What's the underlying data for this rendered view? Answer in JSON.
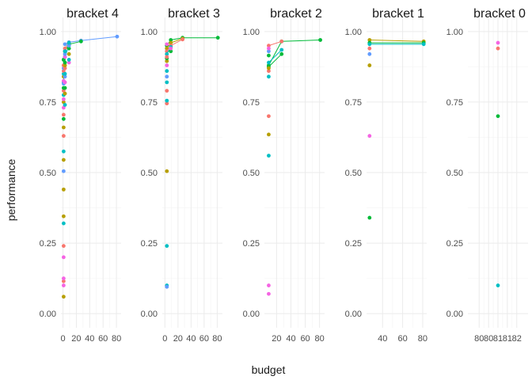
{
  "chart_data": {
    "type": "scatter",
    "xlabel": "budget",
    "ylabel": "performance",
    "ylim": [
      -0.05,
      1.05
    ],
    "y_ticks": [
      0.0,
      0.25,
      0.5,
      0.75,
      1.0
    ],
    "y_tick_labels": [
      "0.00",
      "0.25",
      "0.50",
      "0.75",
      "1.00"
    ],
    "grid": true,
    "legend": "none",
    "palette": [
      "#F8766D",
      "#B79F00",
      "#00BA38",
      "#00BFC4",
      "#619CFF",
      "#F564E3"
    ],
    "facets": [
      {
        "title": "bracket 4",
        "xlim": [
          -3,
          87
        ],
        "x_ticks": [
          0,
          20,
          40,
          60,
          80
        ],
        "x_tick_labels": [
          "0",
          "20",
          "40",
          "60",
          "80"
        ],
        "lines": [
          {
            "color": "#619CFF",
            "points": [
              [
                3,
                0.955
              ],
              [
                9,
                0.962
              ],
              [
                27,
                0.968
              ],
              [
                81,
                0.982
              ]
            ]
          },
          {
            "color": "#00BA38",
            "points": [
              [
                1,
                0.9
              ],
              [
                3,
                0.93
              ],
              [
                9,
                0.955
              ],
              [
                27,
                0.965
              ]
            ]
          },
          {
            "color": "#F8766D",
            "points": [
              [
                1,
                0.88
              ],
              [
                3,
                0.94
              ],
              [
                9,
                0.96
              ]
            ]
          },
          {
            "color": "#00BFC4",
            "points": [
              [
                1,
                0.82
              ],
              [
                3,
                0.91
              ],
              [
                9,
                0.95
              ]
            ]
          }
        ],
        "points": [
          {
            "x": 1,
            "y": 0.06,
            "color": "#B79F00"
          },
          {
            "x": 1,
            "y": 0.1,
            "color": "#F564E3"
          },
          {
            "x": 1,
            "y": 0.115,
            "color": "#F8766D"
          },
          {
            "x": 1,
            "y": 0.125,
            "color": "#F564E3"
          },
          {
            "x": 1,
            "y": 0.2,
            "color": "#F564E3"
          },
          {
            "x": 1,
            "y": 0.24,
            "color": "#F8766D"
          },
          {
            "x": 1,
            "y": 0.32,
            "color": "#00BFC4"
          },
          {
            "x": 1,
            "y": 0.345,
            "color": "#B79F00"
          },
          {
            "x": 1,
            "y": 0.44,
            "color": "#B79F00"
          },
          {
            "x": 1,
            "y": 0.505,
            "color": "#619CFF"
          },
          {
            "x": 1,
            "y": 0.545,
            "color": "#B79F00"
          },
          {
            "x": 1,
            "y": 0.575,
            "color": "#00BFC4"
          },
          {
            "x": 1,
            "y": 0.63,
            "color": "#F8766D"
          },
          {
            "x": 1,
            "y": 0.66,
            "color": "#B79F00"
          },
          {
            "x": 1,
            "y": 0.69,
            "color": "#00BA38"
          },
          {
            "x": 1,
            "y": 0.705,
            "color": "#F8766D"
          },
          {
            "x": 1,
            "y": 0.73,
            "color": "#F564E3"
          },
          {
            "x": 1,
            "y": 0.75,
            "color": "#B79F00"
          },
          {
            "x": 1,
            "y": 0.76,
            "color": "#F564E3"
          },
          {
            "x": 1,
            "y": 0.775,
            "color": "#00BFC4"
          },
          {
            "x": 1,
            "y": 0.79,
            "color": "#F8766D"
          },
          {
            "x": 1,
            "y": 0.8,
            "color": "#00BA38"
          },
          {
            "x": 1,
            "y": 0.815,
            "color": "#619CFF"
          },
          {
            "x": 1,
            "y": 0.825,
            "color": "#F564E3"
          },
          {
            "x": 1,
            "y": 0.84,
            "color": "#B79F00"
          },
          {
            "x": 1,
            "y": 0.85,
            "color": "#00BFC4"
          },
          {
            "x": 1,
            "y": 0.86,
            "color": "#F8766D"
          },
          {
            "x": 1,
            "y": 0.87,
            "color": "#619CFF"
          },
          {
            "x": 1,
            "y": 0.88,
            "color": "#F8766D"
          },
          {
            "x": 1,
            "y": 0.9,
            "color": "#00BA38"
          },
          {
            "x": 3,
            "y": 0.74,
            "color": "#00BFC4"
          },
          {
            "x": 3,
            "y": 0.78,
            "color": "#B79F00"
          },
          {
            "x": 3,
            "y": 0.8,
            "color": "#00BA38"
          },
          {
            "x": 3,
            "y": 0.82,
            "color": "#F564E3"
          },
          {
            "x": 3,
            "y": 0.84,
            "color": "#619CFF"
          },
          {
            "x": 3,
            "y": 0.85,
            "color": "#00BFC4"
          },
          {
            "x": 3,
            "y": 0.87,
            "color": "#F8766D"
          },
          {
            "x": 3,
            "y": 0.88,
            "color": "#B79F00"
          },
          {
            "x": 3,
            "y": 0.89,
            "color": "#00BA38"
          },
          {
            "x": 3,
            "y": 0.91,
            "color": "#F564E3"
          },
          {
            "x": 3,
            "y": 0.92,
            "color": "#619CFF"
          },
          {
            "x": 3,
            "y": 0.93,
            "color": "#00BFC4"
          },
          {
            "x": 9,
            "y": 0.89,
            "color": "#F564E3"
          },
          {
            "x": 9,
            "y": 0.9,
            "color": "#00BFC4"
          },
          {
            "x": 9,
            "y": 0.92,
            "color": "#B79F00"
          },
          {
            "x": 9,
            "y": 0.94,
            "color": "#00BA38"
          },
          {
            "x": 9,
            "y": 0.95,
            "color": "#619CFF"
          },
          {
            "x": 9,
            "y": 0.96,
            "color": "#00BFC4"
          }
        ]
      },
      {
        "title": "bracket 3",
        "xlim": [
          -4,
          88
        ],
        "x_ticks": [
          0,
          20,
          40,
          60,
          80
        ],
        "x_tick_labels": [
          "0",
          "20",
          "40",
          "60",
          "80"
        ],
        "lines": [
          {
            "color": "#00BA38",
            "points": [
              [
                3,
                0.95
              ],
              [
                9,
                0.97
              ],
              [
                27,
                0.978
              ],
              [
                81,
                0.978
              ]
            ]
          },
          {
            "color": "#B79F00",
            "points": [
              [
                3,
                0.94
              ],
              [
                9,
                0.96
              ],
              [
                27,
                0.975
              ]
            ]
          },
          {
            "color": "#F8766D",
            "points": [
              [
                3,
                0.93
              ],
              [
                9,
                0.95
              ],
              [
                27,
                0.972
              ]
            ]
          },
          {
            "color": "#00BFC4",
            "points": [
              [
                3,
                0.92
              ],
              [
                9,
                0.945
              ]
            ]
          }
        ],
        "points": [
          {
            "x": 3,
            "y": 0.1,
            "color": "#00BFC4"
          },
          {
            "x": 3,
            "y": 0.095,
            "color": "#619CFF"
          },
          {
            "x": 3,
            "y": 0.24,
            "color": "#00BFC4"
          },
          {
            "x": 3,
            "y": 0.505,
            "color": "#B79F00"
          },
          {
            "x": 3,
            "y": 0.745,
            "color": "#F8766D"
          },
          {
            "x": 3,
            "y": 0.755,
            "color": "#00BFC4"
          },
          {
            "x": 3,
            "y": 0.79,
            "color": "#F8766D"
          },
          {
            "x": 3,
            "y": 0.82,
            "color": "#00BFC4"
          },
          {
            "x": 3,
            "y": 0.84,
            "color": "#619CFF"
          },
          {
            "x": 3,
            "y": 0.86,
            "color": "#00BFC4"
          },
          {
            "x": 3,
            "y": 0.88,
            "color": "#F564E3"
          },
          {
            "x": 3,
            "y": 0.895,
            "color": "#B79F00"
          },
          {
            "x": 3,
            "y": 0.905,
            "color": "#00BA38"
          },
          {
            "x": 3,
            "y": 0.91,
            "color": "#F8766D"
          },
          {
            "x": 3,
            "y": 0.955,
            "color": "#F564E3"
          },
          {
            "x": 9,
            "y": 0.93,
            "color": "#00BA38"
          },
          {
            "x": 9,
            "y": 0.94,
            "color": "#F564E3"
          }
        ]
      },
      {
        "title": "bracket 2",
        "xlim": [
          3,
          87
        ],
        "x_ticks": [
          20,
          40,
          60,
          80
        ],
        "x_tick_labels": [
          "20",
          "40",
          "60",
          "80"
        ],
        "lines": [
          {
            "color": "#00BA38",
            "points": [
              [
                9,
                0.88
              ],
              [
                27,
                0.965
              ],
              [
                81,
                0.97
              ]
            ]
          },
          {
            "color": "#F8766D",
            "points": [
              [
                9,
                0.95
              ],
              [
                27,
                0.965
              ]
            ]
          },
          {
            "color": "#00BFC4",
            "points": [
              [
                9,
                0.89
              ],
              [
                27,
                0.935
              ]
            ]
          },
          {
            "color": "#00BA38",
            "points": [
              [
                9,
                0.875
              ],
              [
                27,
                0.92
              ]
            ]
          }
        ],
        "points": [
          {
            "x": 9,
            "y": 0.07,
            "color": "#F564E3"
          },
          {
            "x": 9,
            "y": 0.1,
            "color": "#F564E3"
          },
          {
            "x": 9,
            "y": 0.56,
            "color": "#00BFC4"
          },
          {
            "x": 9,
            "y": 0.635,
            "color": "#B79F00"
          },
          {
            "x": 9,
            "y": 0.7,
            "color": "#F8766D"
          },
          {
            "x": 9,
            "y": 0.84,
            "color": "#00BFC4"
          },
          {
            "x": 9,
            "y": 0.86,
            "color": "#F8766D"
          },
          {
            "x": 9,
            "y": 0.87,
            "color": "#B79F00"
          },
          {
            "x": 9,
            "y": 0.915,
            "color": "#00BA38"
          },
          {
            "x": 9,
            "y": 0.93,
            "color": "#619CFF"
          },
          {
            "x": 9,
            "y": 0.94,
            "color": "#F564E3"
          }
        ]
      },
      {
        "title": "bracket 1",
        "xlim": [
          24,
          84
        ],
        "x_ticks": [
          40,
          60,
          80
        ],
        "x_tick_labels": [
          "40",
          "60",
          "80"
        ],
        "lines": [
          {
            "color": "#B79F00",
            "points": [
              [
                27,
                0.97
              ],
              [
                81,
                0.965
              ]
            ]
          },
          {
            "color": "#00BA38",
            "points": [
              [
                27,
                0.96
              ],
              [
                81,
                0.96
              ]
            ]
          },
          {
            "color": "#00BFC4",
            "points": [
              [
                27,
                0.955
              ],
              [
                81,
                0.955
              ]
            ]
          }
        ],
        "points": [
          {
            "x": 27,
            "y": 0.34,
            "color": "#00BA38"
          },
          {
            "x": 27,
            "y": 0.63,
            "color": "#F564E3"
          },
          {
            "x": 27,
            "y": 0.88,
            "color": "#B79F00"
          },
          {
            "x": 27,
            "y": 0.92,
            "color": "#619CFF"
          },
          {
            "x": 27,
            "y": 0.94,
            "color": "#F8766D"
          }
        ]
      },
      {
        "title": "bracket 0",
        "xlim": [
          79.4,
          82.6
        ],
        "x_ticks": [
          80,
          80.5,
          81,
          81.5,
          82
        ],
        "x_tick_labels": [
          "80",
          "80",
          "81",
          "81",
          "82"
        ],
        "lines": [],
        "points": [
          {
            "x": 81,
            "y": 0.1,
            "color": "#00BFC4"
          },
          {
            "x": 81,
            "y": 0.7,
            "color": "#00BA38"
          },
          {
            "x": 81,
            "y": 0.94,
            "color": "#F8766D"
          },
          {
            "x": 81,
            "y": 0.96,
            "color": "#F564E3"
          }
        ]
      }
    ]
  }
}
